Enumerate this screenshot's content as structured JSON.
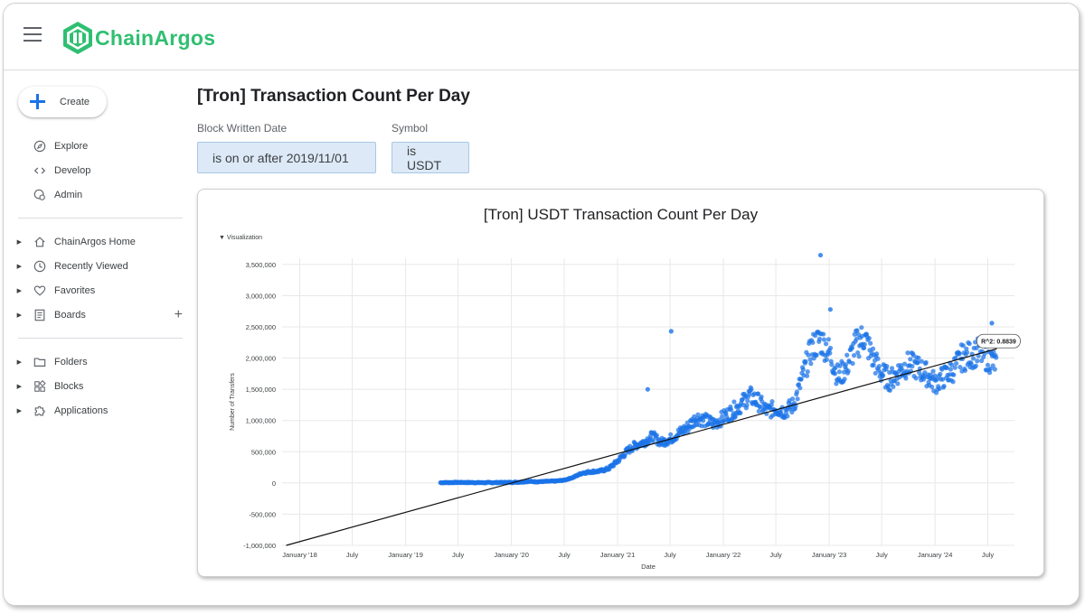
{
  "app": {
    "brand": "ChainArgos",
    "brand_color": "#2fbf71"
  },
  "sidebar": {
    "create_label": "Create",
    "primary": [
      {
        "label": "Explore",
        "icon": "compass-icon"
      },
      {
        "label": "Develop",
        "icon": "code-icon"
      },
      {
        "label": "Admin",
        "icon": "admin-gear-icon"
      }
    ],
    "secondary": [
      {
        "label": "ChainArgos Home",
        "icon": "home-icon"
      },
      {
        "label": "Recently Viewed",
        "icon": "clock-icon"
      },
      {
        "label": "Favorites",
        "icon": "heart-icon"
      },
      {
        "label": "Boards",
        "icon": "board-icon"
      }
    ],
    "tertiary": [
      {
        "label": "Folders",
        "icon": "folder-icon"
      },
      {
        "label": "Blocks",
        "icon": "blocks-icon"
      },
      {
        "label": "Applications",
        "icon": "puzzle-icon"
      }
    ]
  },
  "dashboard": {
    "title": "[Tron] Transaction Count Per Day",
    "filters": [
      {
        "label": "Block Written Date",
        "value": "is on or after 2019/11/01"
      },
      {
        "label": "Symbol",
        "value": "is USDT"
      }
    ]
  },
  "tile": {
    "title": "[Tron] USDT Transaction Count Per Day",
    "viz_toggle": "Visualization"
  },
  "chart_data": {
    "type": "scatter",
    "title": "[Tron] USDT Transaction Count Per Day",
    "xlabel": "Date",
    "ylabel": "Number of Transfers",
    "x_ticks": [
      "January '18",
      "July",
      "January '19",
      "July",
      "January '20",
      "July",
      "January '21",
      "July",
      "January '22",
      "July",
      "January '23",
      "July",
      "January '24",
      "July"
    ],
    "x_range": [
      "2017-11-01",
      "2024-10-01"
    ],
    "y_ticks": [
      "3,500,000",
      "3,000,000",
      "2,500,000",
      "2,000,000",
      "1,500,000",
      "1,000,000",
      "500,000",
      "0",
      "-500,000",
      "-1,000,000"
    ],
    "ylim": [
      -1000000,
      3600000
    ],
    "grid": true,
    "series_color": "#1a73e8",
    "trendline": {
      "start": [
        "2017-11-15",
        -1000000
      ],
      "end": [
        "2024-08-01",
        2150000
      ],
      "r_squared_label": "R^2: 0.8839"
    },
    "points": [
      [
        "2019-05-01",
        5000
      ],
      [
        "2019-06-01",
        7000
      ],
      [
        "2019-07-01",
        9000
      ],
      [
        "2019-08-01",
        8000
      ],
      [
        "2019-09-01",
        6000
      ],
      [
        "2019-10-01",
        5000
      ],
      [
        "2019-11-01",
        6000
      ],
      [
        "2019-12-01",
        8000
      ],
      [
        "2020-01-01",
        10000
      ],
      [
        "2020-02-01",
        15000
      ],
      [
        "2020-03-01",
        25000
      ],
      [
        "2020-04-01",
        20000
      ],
      [
        "2020-05-01",
        25000
      ],
      [
        "2020-06-01",
        30000
      ],
      [
        "2020-07-01",
        45000
      ],
      [
        "2020-08-01",
        90000
      ],
      [
        "2020-09-01",
        160000
      ],
      [
        "2020-10-01",
        180000
      ],
      [
        "2020-11-01",
        190000
      ],
      [
        "2020-12-01",
        230000
      ],
      [
        "2021-01-01",
        350000
      ],
      [
        "2021-02-01",
        500000
      ],
      [
        "2021-03-01",
        600000
      ],
      [
        "2021-04-01",
        650000
      ],
      [
        "2021-05-01",
        750000
      ],
      [
        "2021-06-01",
        650000
      ],
      [
        "2021-07-01",
        700000
      ],
      [
        "2021-08-01",
        800000
      ],
      [
        "2021-09-01",
        900000
      ],
      [
        "2021-10-01",
        1050000
      ],
      [
        "2021-11-01",
        1000000
      ],
      [
        "2021-12-01",
        950000
      ],
      [
        "2022-01-01",
        1050000
      ],
      [
        "2022-02-01",
        1150000
      ],
      [
        "2022-03-01",
        1250000
      ],
      [
        "2022-04-01",
        1400000
      ],
      [
        "2022-05-01",
        1300000
      ],
      [
        "2022-06-01",
        1150000
      ],
      [
        "2022-07-01",
        1200000
      ],
      [
        "2022-08-01",
        1150000
      ],
      [
        "2022-09-01",
        1250000
      ],
      [
        "2022-10-01",
        1700000
      ],
      [
        "2022-11-01",
        2150000
      ],
      [
        "2022-12-01",
        2300000
      ],
      [
        "2023-01-01",
        2100000
      ],
      [
        "2023-02-01",
        1700000
      ],
      [
        "2023-03-01",
        1850000
      ],
      [
        "2023-04-01",
        2200000
      ],
      [
        "2023-05-01",
        2350000
      ],
      [
        "2023-06-01",
        2000000
      ],
      [
        "2023-07-01",
        1750000
      ],
      [
        "2023-08-01",
        1650000
      ],
      [
        "2023-09-01",
        1800000
      ],
      [
        "2023-10-01",
        1900000
      ],
      [
        "2023-11-01",
        1850000
      ],
      [
        "2023-12-01",
        1750000
      ],
      [
        "2024-01-01",
        1600000
      ],
      [
        "2024-02-01",
        1700000
      ],
      [
        "2024-03-01",
        1800000
      ],
      [
        "2024-04-01",
        2000000
      ],
      [
        "2024-05-01",
        2050000
      ],
      [
        "2024-06-01",
        2100000
      ],
      [
        "2024-07-01",
        2000000
      ],
      [
        "2024-08-01",
        1900000
      ]
    ],
    "outliers": [
      [
        "2021-07-05",
        2430000
      ],
      [
        "2022-12-02",
        3650000
      ],
      [
        "2021-04-15",
        1500000
      ],
      [
        "2024-07-15",
        2560000
      ],
      [
        "2023-01-05",
        2780000
      ]
    ]
  }
}
